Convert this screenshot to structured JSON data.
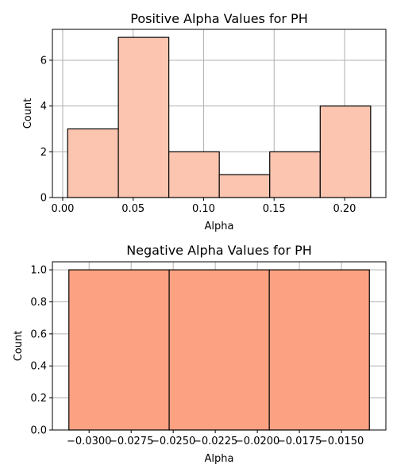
{
  "chart_data": [
    {
      "type": "bar",
      "title": "Positive Alpha Values for PH",
      "xlabel": "Alpha",
      "ylabel": "Count",
      "bins": [
        {
          "start": 0.0035,
          "end": 0.0395,
          "count": 3
        },
        {
          "start": 0.0395,
          "end": 0.0753,
          "count": 7
        },
        {
          "start": 0.0753,
          "end": 0.1111,
          "count": 2
        },
        {
          "start": 0.1111,
          "end": 0.1469,
          "count": 1
        },
        {
          "start": 0.1469,
          "end": 0.1827,
          "count": 2
        },
        {
          "start": 0.1827,
          "end": 0.2185,
          "count": 4
        }
      ],
      "xlim": [
        -0.0073,
        0.2293
      ],
      "ylim": [
        0,
        7.35
      ],
      "xticks": [
        0.0,
        0.05,
        0.1,
        0.15,
        0.2
      ],
      "xtick_labels": [
        "0.00",
        "0.05",
        "0.10",
        "0.15",
        "0.20"
      ],
      "yticks": [
        0,
        2,
        4,
        6
      ],
      "ytick_labels": [
        "0",
        "2",
        "4",
        "6"
      ],
      "grid": true,
      "bar_color": "#fcc5b0"
    },
    {
      "type": "bar",
      "title": "Negative Alpha Values for PH",
      "xlabel": "Alpha",
      "ylabel": "Count",
      "bins": [
        {
          "start": -0.0312,
          "end": -0.02524,
          "count": 1
        },
        {
          "start": -0.02524,
          "end": -0.01929,
          "count": 1
        },
        {
          "start": -0.01929,
          "end": -0.01334,
          "count": 1
        }
      ],
      "xlim": [
        -0.03218,
        -0.01236
      ],
      "ylim": [
        0,
        1.05
      ],
      "xticks": [
        -0.03,
        -0.0275,
        -0.025,
        -0.0225,
        -0.02,
        -0.0175,
        -0.015
      ],
      "xtick_labels": [
        "−0.0300",
        "−0.0275",
        "−0.0250",
        "−0.0225",
        "−0.0200",
        "−0.0175",
        "−0.0150"
      ],
      "yticks": [
        0,
        0.2,
        0.4,
        0.6,
        0.8,
        1.0
      ],
      "ytick_labels": [
        "0.0",
        "0.2",
        "0.4",
        "0.6",
        "0.8",
        "1.0"
      ],
      "grid": true,
      "bar_color": "#fca282"
    }
  ]
}
